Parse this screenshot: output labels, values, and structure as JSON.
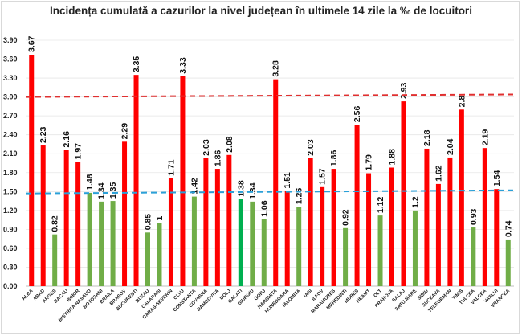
{
  "chart_data": {
    "type": "bar",
    "title": "Incidența cumulată a cazurilor la nivel județean în ultimele 14 zile la ‰ de locuitori",
    "xlabel": "",
    "ylabel": "",
    "ylim": [
      0,
      3.9
    ],
    "yticks": [
      "0.00",
      "0.30",
      "0.60",
      "0.90",
      "1.20",
      "1.50",
      "1.80",
      "2.10",
      "2.40",
      "2.70",
      "3.00",
      "3.30",
      "3.60",
      "3.90"
    ],
    "grid": true,
    "categories": [
      "ALBA",
      "ARAD",
      "ARGES",
      "BACAU",
      "BIHOR",
      "BISTRITA NASAUD",
      "BOTOSANI",
      "BRAILA",
      "BRASOV",
      "BUCURESTI",
      "BUZAU",
      "CALARASI",
      "CARAS-SEVERIN",
      "CLUJ",
      "CONSTANTA",
      "COVASNA",
      "DAMBOVITA",
      "DOLJ",
      "GALATI",
      "GIURGIU",
      "GORJ",
      "HARGHITA",
      "HUNEDOARA",
      "IALOMITA",
      "IASI",
      "ILFOV",
      "MARAMURES",
      "MEHEDINTI",
      "MURES",
      "NEAMT",
      "OLT",
      "PRAHOVA",
      "SALAJ",
      "SATU MARE",
      "SIBIU",
      "SUCEAVA",
      "TELEORMAN",
      "TIMIS",
      "TULCEA",
      "VALCEA",
      "VASLUI",
      "VRANCEA"
    ],
    "values": [
      3.67,
      2.23,
      0.82,
      2.16,
      1.97,
      1.48,
      1.34,
      1.35,
      2.29,
      3.35,
      0.85,
      1,
      1.71,
      3.33,
      1.42,
      2.03,
      1.86,
      2.08,
      1.38,
      1.34,
      1.06,
      3.28,
      1.51,
      1.26,
      2.03,
      1.57,
      1.86,
      0.92,
      2.56,
      1.79,
      1.12,
      1.88,
      2.93,
      1.2,
      2.18,
      1.62,
      2.04,
      2.8,
      0.93,
      2.19,
      1.54,
      0.74
    ],
    "value_labels": [
      "3.67",
      "2.23",
      "0.82",
      "2.16",
      "1.97",
      "1.48",
      "1.34",
      "1.35",
      "2.29",
      "3.35",
      "0.85",
      "1",
      "1.71",
      "3.33",
      "1.42",
      "2.03",
      "1.86",
      "2.08",
      "1.38",
      "1.34",
      "1.06",
      "3.28",
      "1.51",
      "1.26",
      "2.03",
      "1.57",
      "1.86",
      "0.92",
      "2.56",
      "1.79",
      "1.12",
      "1.88",
      "2.93",
      "1.2",
      "2.18",
      "1.62",
      "2.04",
      "2.8",
      "0.93",
      "2.19",
      "1.54",
      "0.74"
    ],
    "colors": {
      "above": "#ff0000",
      "below": "#70ad47",
      "highlight": "#00b050",
      "red_line": "#e03030",
      "blue_line": "#2aa0d8"
    },
    "highlight_category": "GALATI",
    "reference_lines": [
      {
        "start": 3.0,
        "end": 3.04,
        "color": "red_line"
      },
      {
        "start": 1.47,
        "end": 1.52,
        "color": "blue_line"
      }
    ]
  }
}
